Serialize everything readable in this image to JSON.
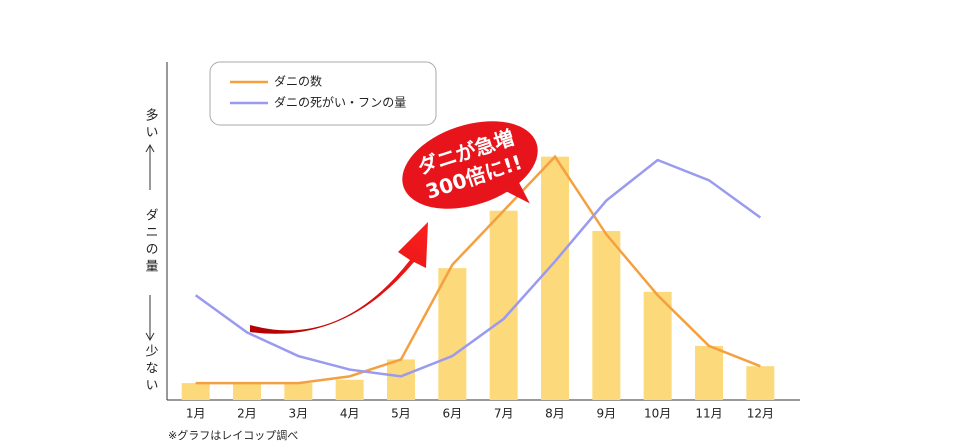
{
  "chart_data": {
    "type": "bar-line",
    "categories": [
      "1月",
      "2月",
      "3月",
      "4月",
      "5月",
      "6月",
      "7月",
      "8月",
      "9月",
      "10月",
      "11月",
      "12月"
    ],
    "bars": {
      "color": "#fcd97a",
      "values": [
        5,
        5,
        5,
        6,
        12,
        39,
        56,
        72,
        50,
        32,
        16,
        10
      ]
    },
    "series": [
      {
        "name": "ダニの数",
        "color": "#f5a040",
        "values": [
          5,
          5,
          5,
          7,
          12,
          40,
          56,
          72,
          49,
          31,
          16,
          10
        ]
      },
      {
        "name": "ダニの死がい・フンの量",
        "color": "#9a9af0",
        "values": [
          31,
          20,
          13,
          9,
          7,
          13,
          24,
          41,
          59,
          71,
          65,
          54
        ]
      }
    ],
    "ylim": [
      0,
      100
    ],
    "y_label_top": "多い",
    "y_label_middle": "ダニの量",
    "y_label_bottom": "少ない",
    "annotation_line1": "ダニが急増",
    "annotation_line2": "300倍に!!",
    "footnote": "※グラフはレイコップ調べ"
  }
}
